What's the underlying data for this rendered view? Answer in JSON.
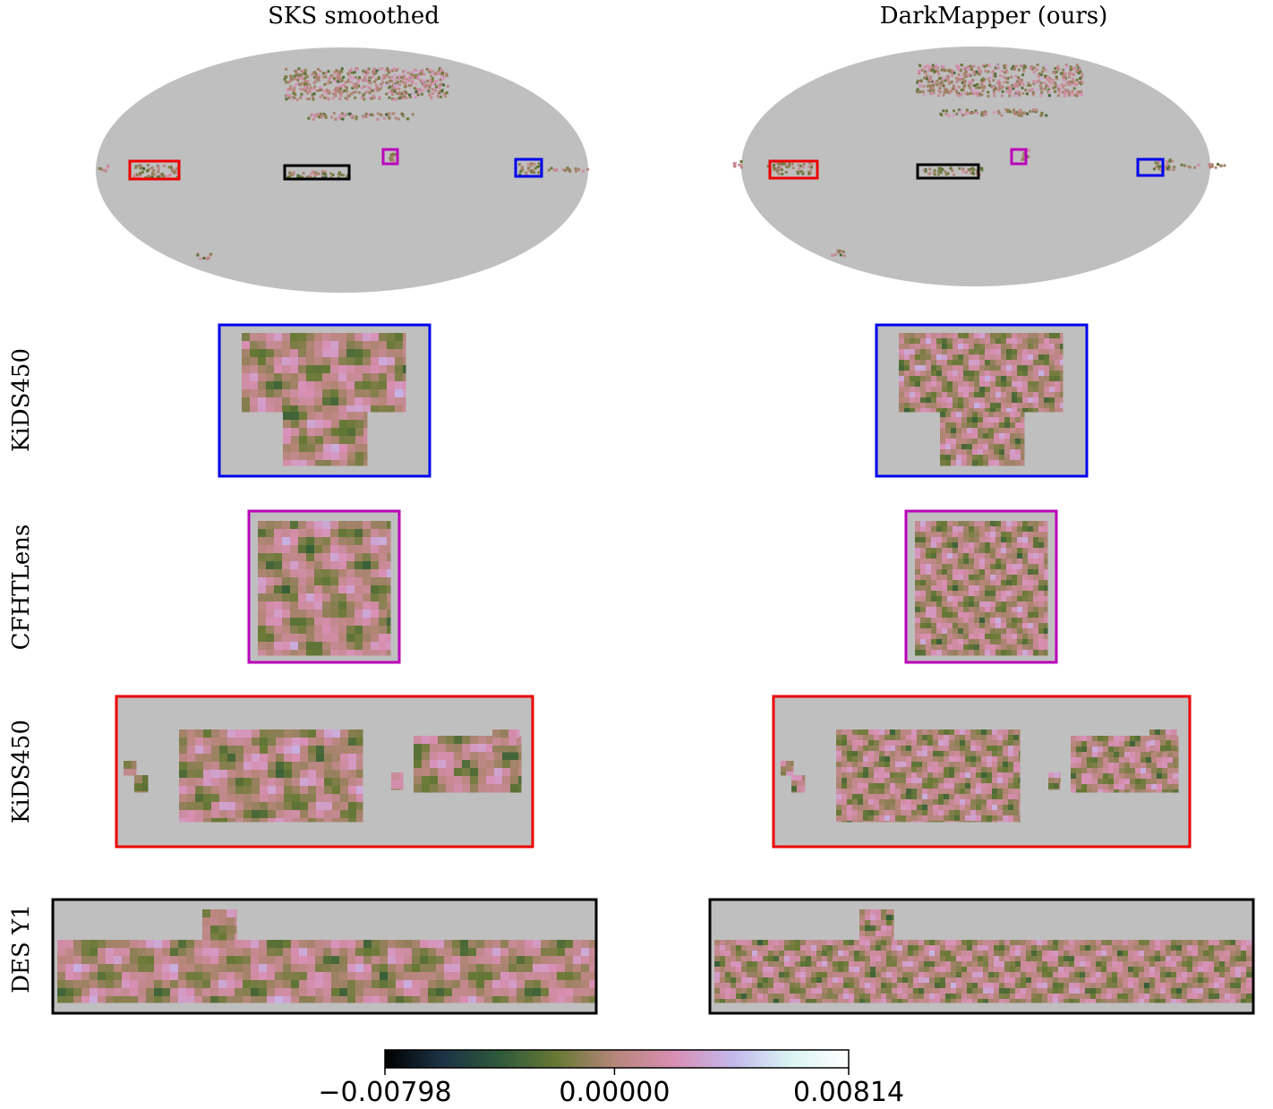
{
  "columns": [
    "SKS smoothed",
    "DarkMapper (ours)"
  ],
  "rows": [
    "KiDS450",
    "CFHTLens",
    "KiDS450",
    "DES Y1"
  ],
  "colorbar": {
    "lim": [
      -0.00798,
      0.00814
    ],
    "ticks": [
      {
        "value": -0.00798,
        "label": "−0.00798"
      },
      {
        "value": 0,
        "label": "0.00000"
      },
      {
        "value": 0.00814,
        "label": "0.00814"
      }
    ],
    "colormap": [
      "#000000",
      "#1c3346",
      "#2f5a3a",
      "#6a7a36",
      "#b8867c",
      "#d98fb4",
      "#c3b8ec",
      "#d9f4f3",
      "#ffffff"
    ]
  }
}
